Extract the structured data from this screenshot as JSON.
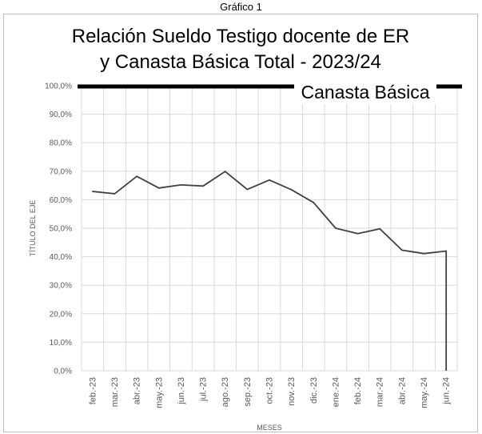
{
  "caption": "Gráfico 1",
  "chart_data": {
    "type": "line",
    "title": [
      "Relación Sueldo Testigo docente de ER",
      "y Canasta Básica Total - 2023/24"
    ],
    "xlabel": "MESES",
    "ylabel": "TÍTULO DEL EJE",
    "categories": [
      "feb.-23",
      "mar.-23",
      "abr.-23",
      "may.-23",
      "jun.-23",
      "jul.-23",
      "ago.-23",
      "sep.-23",
      "oct.-23",
      "nov.-23",
      "dic.-23",
      "ene.-24",
      "feb.-24",
      "mar.-24",
      "abr.-24",
      "may.-24",
      "jun.-24"
    ],
    "series": [
      {
        "values": [
          0.629,
          0.621,
          0.682,
          0.641,
          0.652,
          0.648,
          0.699,
          0.636,
          0.669,
          0.635,
          0.59,
          0.5,
          0.481,
          0.498,
          0.423,
          0.411,
          0.42
        ],
        "color": "#404040"
      }
    ],
    "ylim": [
      0,
      1
    ],
    "yticks": [
      "0,0%",
      "10,0%",
      "20,0%",
      "30,0%",
      "40,0%",
      "50,0%",
      "60,0%",
      "70,0%",
      "80,0%",
      "90,0%",
      "100,0%"
    ],
    "reference_line": {
      "label": "Canasta Básica",
      "value": 1.0,
      "color": "#000000"
    },
    "grid": true,
    "drop_to_axis_at_end": true
  }
}
